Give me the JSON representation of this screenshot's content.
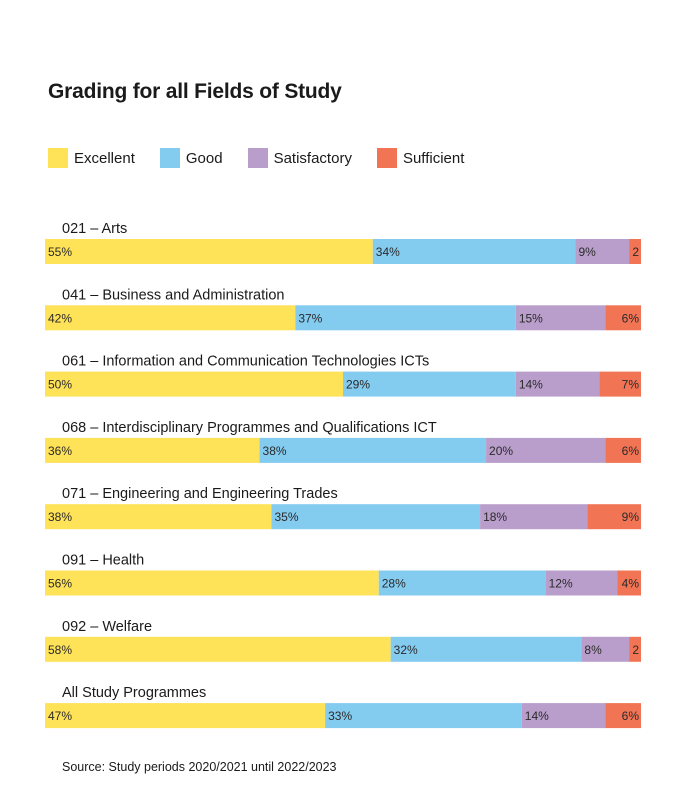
{
  "chart_data": {
    "type": "bar",
    "orientation": "horizontal-stacked-100",
    "title": "Grading for all Fields of Study",
    "series": [
      {
        "name": "Excellent",
        "color": "#FEE257"
      },
      {
        "name": "Good",
        "color": "#84CBF0"
      },
      {
        "name": "Satisfactory",
        "color": "#B99ECB"
      },
      {
        "name": "Sufficient",
        "color": "#F17455"
      }
    ],
    "categories": [
      "021 – Arts",
      "041 – Business and Administration",
      "061 – Information and Communication Technologies ICTs",
      "068 – Interdisciplinary Programmes and Qualifications ICT",
      "071  – Engineering and Engineering Trades",
      "091 – Health",
      "092 – Welfare",
      "All Study Programmes"
    ],
    "values": [
      [
        55,
        34,
        9,
        2
      ],
      [
        42,
        37,
        15,
        6
      ],
      [
        50,
        29,
        14,
        7
      ],
      [
        36,
        38,
        20,
        6
      ],
      [
        38,
        35,
        18,
        9
      ],
      [
        56,
        28,
        12,
        4
      ],
      [
        58,
        32,
        8,
        2
      ],
      [
        47,
        33,
        14,
        6
      ]
    ],
    "labels": [
      [
        "55%",
        "34%",
        "9%",
        "2"
      ],
      [
        "42%",
        "37%",
        "15%",
        "6%"
      ],
      [
        "50%",
        "29%",
        "14%",
        "7%"
      ],
      [
        "36%",
        "38%",
        "20%",
        "6%"
      ],
      [
        "38%",
        "35%",
        "18%",
        "9%"
      ],
      [
        "56%",
        "28%",
        "12%",
        "4%"
      ],
      [
        "58%",
        "32%",
        "8%",
        "2"
      ],
      [
        "47%",
        "33%",
        "14%",
        "6%"
      ]
    ],
    "xlim": [
      0,
      100
    ],
    "legend_position": "top-left",
    "grid": false
  },
  "source": "Source: Study periods 2020/2021 until 2022/2023"
}
